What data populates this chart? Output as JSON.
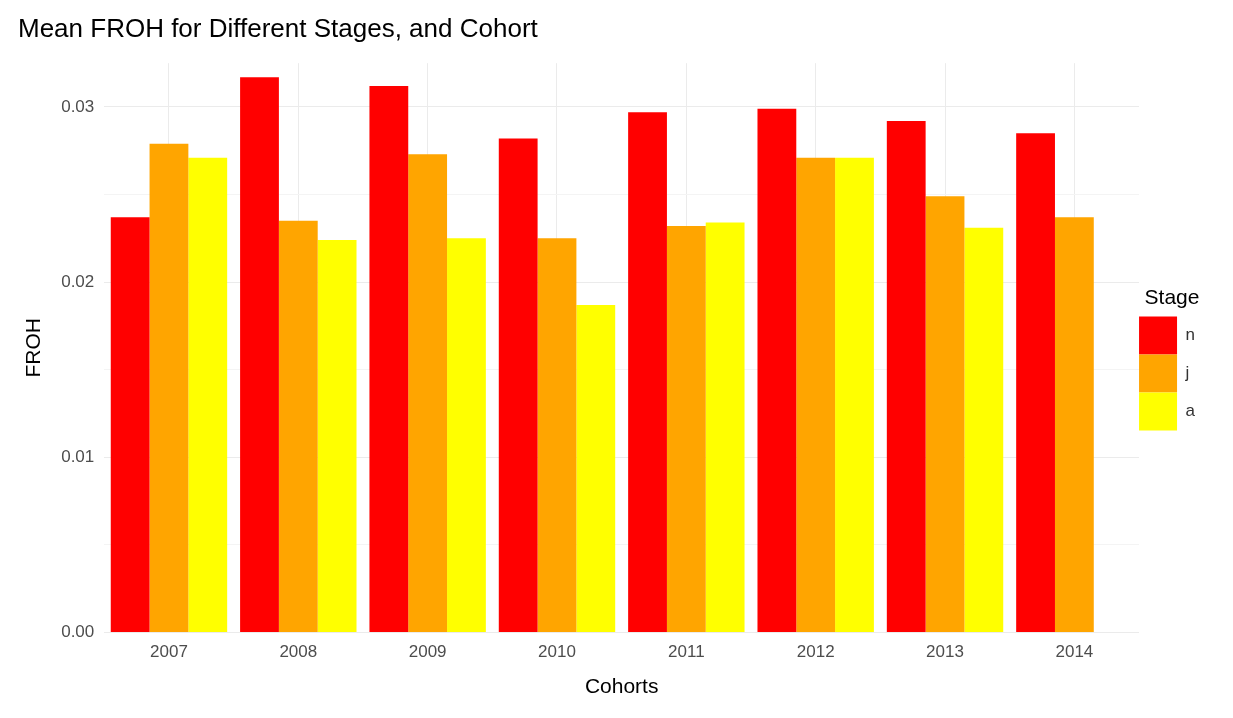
{
  "chart_data": {
    "type": "bar",
    "title": "Mean FROH for Different Stages, and Cohort",
    "xlabel": "Cohorts",
    "ylabel": "FROH",
    "legend_title": "Stage",
    "categories": [
      "2007",
      "2008",
      "2009",
      "2010",
      "2011",
      "2012",
      "2013",
      "2014"
    ],
    "series": [
      {
        "name": "n",
        "color": "#ff0000",
        "values": [
          0.0237,
          0.0317,
          0.0312,
          0.0282,
          0.0297,
          0.0299,
          0.0292,
          0.0285
        ]
      },
      {
        "name": "j",
        "color": "#ffa500",
        "values": [
          0.0279,
          0.0235,
          0.0273,
          0.0225,
          0.0232,
          0.0271,
          0.0249,
          0.0237
        ]
      },
      {
        "name": "a",
        "color": "#ffff00",
        "values": [
          0.0271,
          0.0224,
          0.0225,
          0.0187,
          0.0234,
          0.0271,
          0.0231,
          null
        ]
      }
    ],
    "ylim": [
      0,
      0.0325
    ],
    "yticks": [
      {
        "value": 0,
        "label": "0.00"
      },
      {
        "value": 0.005,
        "label": null
      },
      {
        "value": 0.01,
        "label": "0.01"
      },
      {
        "value": 0.015,
        "label": null
      },
      {
        "value": 0.02,
        "label": "0.02"
      },
      {
        "value": 0.025,
        "label": null
      },
      {
        "value": 0.03,
        "label": "0.03"
      }
    ],
    "grid": true,
    "legend": "right"
  }
}
